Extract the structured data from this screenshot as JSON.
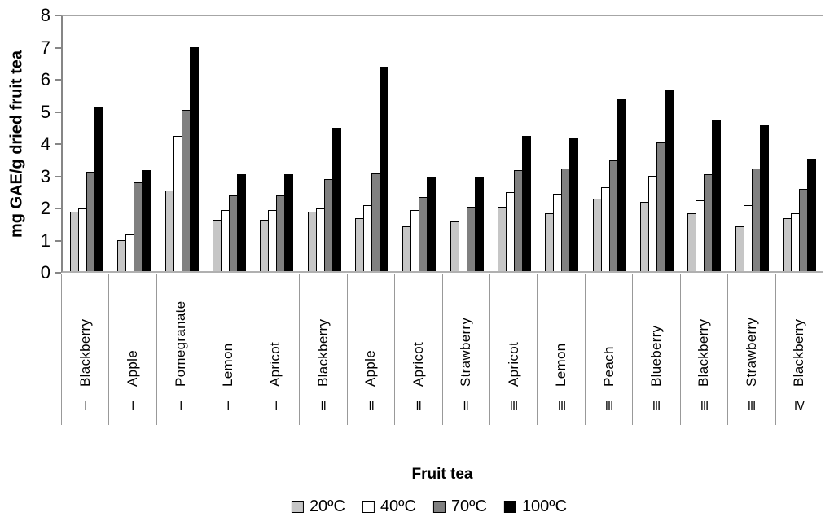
{
  "chart_data": {
    "type": "bar",
    "title": "",
    "ylabel": "mg GAE/g dried fruit tea",
    "xlabel": "Fruit tea",
    "ylim": [
      0,
      8
    ],
    "yticks": [
      0,
      1,
      2,
      3,
      4,
      5,
      6,
      7,
      8
    ],
    "grid": "off",
    "legend_position": "bottom",
    "categories": [
      {
        "fruit": "Blackberry",
        "group": "I"
      },
      {
        "fruit": "Apple",
        "group": "I"
      },
      {
        "fruit": "Pomegranate",
        "group": "I"
      },
      {
        "fruit": "Lemon",
        "group": "I"
      },
      {
        "fruit": "Apricot",
        "group": "I"
      },
      {
        "fruit": "Blackberry",
        "group": "II"
      },
      {
        "fruit": "Apple",
        "group": "II"
      },
      {
        "fruit": "Apricot",
        "group": "II"
      },
      {
        "fruit": "Strawberry",
        "group": "II"
      },
      {
        "fruit": "Apricot",
        "group": "III"
      },
      {
        "fruit": "Lemon",
        "group": "III"
      },
      {
        "fruit": "Peach",
        "group": "III"
      },
      {
        "fruit": "Blueberry",
        "group": "III"
      },
      {
        "fruit": "Blackberry",
        "group": "III"
      },
      {
        "fruit": "Strawberry",
        "group": "III"
      },
      {
        "fruit": "Blackberry",
        "group": "IV"
      }
    ],
    "series": [
      {
        "name": "20ºC",
        "color": "#c6c6c6",
        "values": [
          1.85,
          0.95,
          2.5,
          1.6,
          1.6,
          1.85,
          1.65,
          1.4,
          1.55,
          2.0,
          1.8,
          2.25,
          2.15,
          1.8,
          1.4,
          1.65
        ]
      },
      {
        "name": "40ºC",
        "color": "#ffffff",
        "values": [
          1.95,
          1.15,
          4.2,
          1.9,
          1.9,
          1.95,
          2.05,
          1.9,
          1.85,
          2.45,
          2.4,
          2.6,
          2.95,
          2.2,
          2.05,
          1.8
        ]
      },
      {
        "name": "70ºC",
        "color": "#808080",
        "values": [
          3.1,
          2.75,
          5.0,
          2.35,
          2.35,
          2.85,
          3.05,
          2.3,
          2.0,
          3.15,
          3.2,
          3.45,
          4.0,
          3.0,
          3.2,
          2.55
        ]
      },
      {
        "name": "100ºC",
        "color": "#000000",
        "values": [
          5.1,
          3.15,
          6.95,
          3.0,
          3.0,
          4.45,
          6.35,
          2.9,
          2.9,
          4.2,
          4.15,
          5.35,
          5.65,
          4.7,
          4.55,
          3.5
        ]
      }
    ]
  }
}
